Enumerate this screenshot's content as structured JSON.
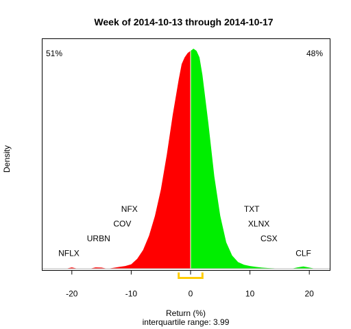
{
  "chart_data": {
    "type": "area",
    "title": "Week of 2014-10-13 through 2014-10-17",
    "xlabel": "Return (%)",
    "xlabel_sub": "interquartile range: 3.99",
    "ylabel": "Density",
    "xlim": [
      -25,
      23.5
    ],
    "xticks": [
      -20,
      -10,
      0,
      10,
      20
    ],
    "negative_share": "51%",
    "positive_share": "48%",
    "colors": {
      "negative": "#ff0000",
      "positive": "#00ee00",
      "iqr_bracket": "#ffcc00",
      "baseline": "#bebebe"
    },
    "interquartile_range": 3.99,
    "iqr_bounds": [
      -2,
      2
    ],
    "density_curve": {
      "x": [
        -21,
        -20,
        -19,
        -17,
        -16,
        -15,
        -14,
        -13,
        -12,
        -11,
        -10,
        -9,
        -8,
        -7,
        -6,
        -5,
        -4,
        -3,
        -2,
        -1.5,
        -1,
        -0.5,
        0,
        0.5,
        1,
        1.5,
        2,
        3,
        4,
        5,
        6,
        7,
        8,
        9,
        10,
        11,
        12,
        13,
        14,
        15,
        17,
        18,
        19,
        20,
        21
      ],
      "y": [
        0.0,
        0.006,
        0.0,
        0.0,
        0.006,
        0.005,
        0.0,
        0.004,
        0.008,
        0.012,
        0.02,
        0.045,
        0.085,
        0.15,
        0.24,
        0.36,
        0.52,
        0.7,
        0.86,
        0.93,
        0.96,
        0.98,
        0.99,
        1.0,
        0.99,
        0.96,
        0.88,
        0.66,
        0.42,
        0.24,
        0.12,
        0.06,
        0.03,
        0.018,
        0.012,
        0.008,
        0.005,
        0.003,
        0.002,
        0.0,
        0.0,
        0.006,
        0.01,
        0.005,
        0.0
      ]
    },
    "annotations": [
      {
        "text": "NFLX",
        "x": -20.5,
        "y": 0.058
      },
      {
        "text": "URBN",
        "x": -15.5,
        "y": 0.125
      },
      {
        "text": "COV",
        "x": -11.5,
        "y": 0.192
      },
      {
        "text": "NFX",
        "x": -10.3,
        "y": 0.258
      },
      {
        "text": "TXT",
        "x": 10.3,
        "y": 0.258
      },
      {
        "text": "XLNX",
        "x": 11.5,
        "y": 0.192
      },
      {
        "text": "CSX",
        "x": 13.2,
        "y": 0.125
      },
      {
        "text": "CLF",
        "x": 19.0,
        "y": 0.058
      }
    ]
  }
}
